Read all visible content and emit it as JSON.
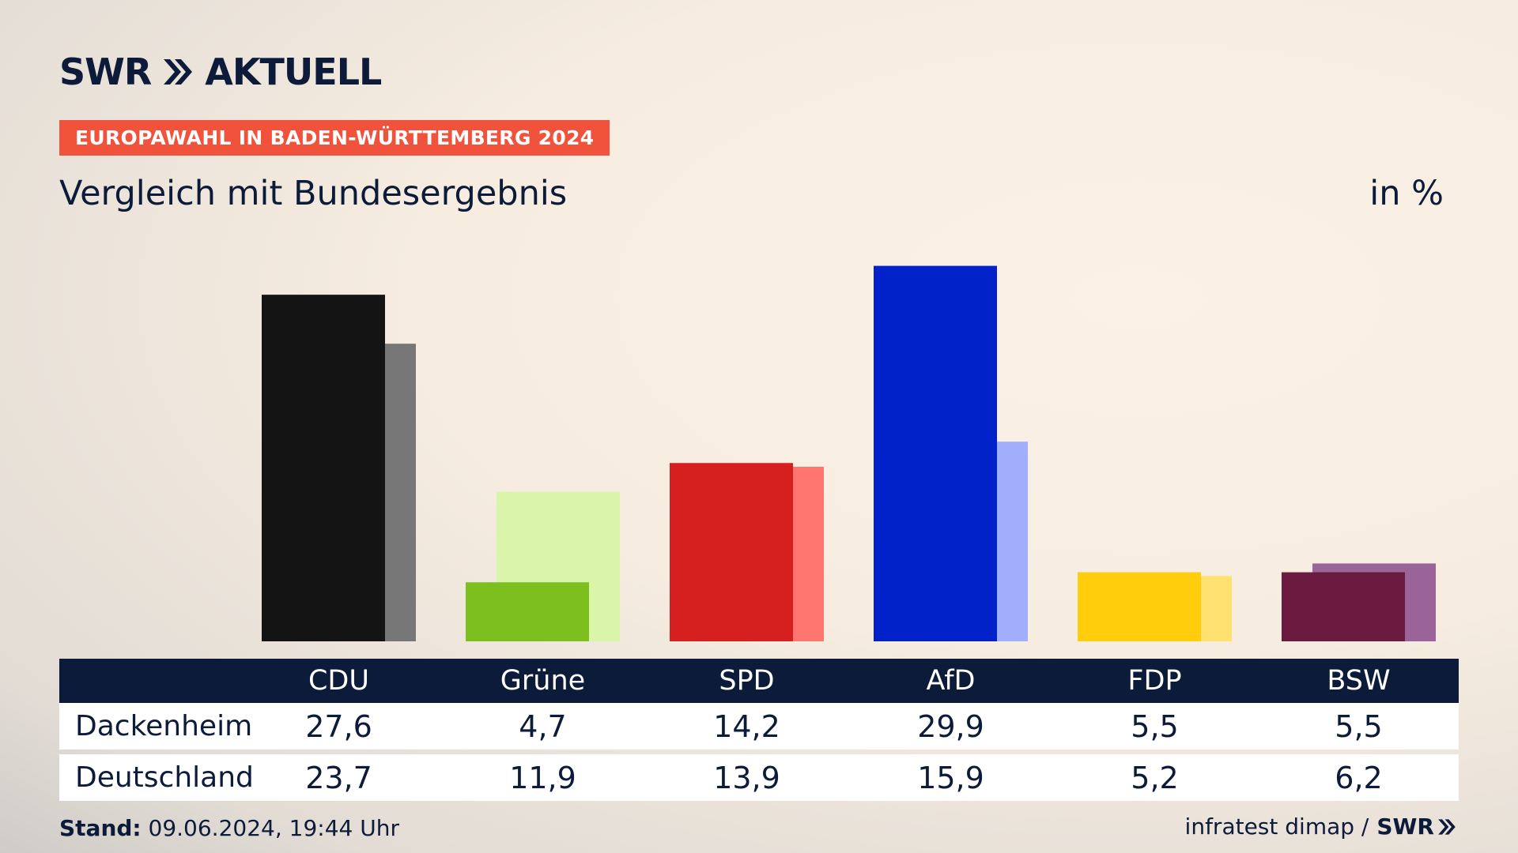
{
  "header": {
    "logo_text": "SWR",
    "logo_suffix": "AKTUELL",
    "badge": "EUROPAWAHL IN BADEN-WÜRTTEMBERG 2024",
    "subtitle": "Vergleich mit Bundesergebnis",
    "unit": "in %"
  },
  "table": {
    "rows": [
      {
        "label": "Dackenheim",
        "values": [
          "27,6",
          "4,7",
          "14,2",
          "29,9",
          "5,5",
          "5,5"
        ]
      },
      {
        "label": "Deutschland",
        "values": [
          "23,7",
          "11,9",
          "13,9",
          "15,9",
          "5,2",
          "6,2"
        ]
      }
    ]
  },
  "footer": {
    "stand_label": "Stand:",
    "stand_value": " 09.06.2024, 19:44 Uhr",
    "source": "infratest dimap /",
    "source_logo": "SWR"
  },
  "colors": {
    "primary": [
      "#141414",
      "#7cbf1e",
      "#d61f1f",
      "#0022c8",
      "#ffcd0c",
      "#6b1a40"
    ],
    "secondary": [
      "#777777",
      "#d8f5aa",
      "#ff7570",
      "#a0aefc",
      "#ffe171",
      "#9b6499"
    ],
    "header_bg": "#0d1b3a",
    "badge_bg": "#f0523c"
  },
  "chart_data": {
    "type": "bar",
    "categories": [
      "CDU",
      "Grüne",
      "SPD",
      "AfD",
      "FDP",
      "BSW"
    ],
    "series": [
      {
        "name": "Dackenheim",
        "values": [
          27.6,
          4.7,
          14.2,
          29.9,
          5.5,
          5.5
        ]
      },
      {
        "name": "Deutschland",
        "values": [
          23.7,
          11.9,
          13.9,
          15.9,
          5.2,
          6.2
        ]
      }
    ],
    "ylabel": "in %"
  }
}
